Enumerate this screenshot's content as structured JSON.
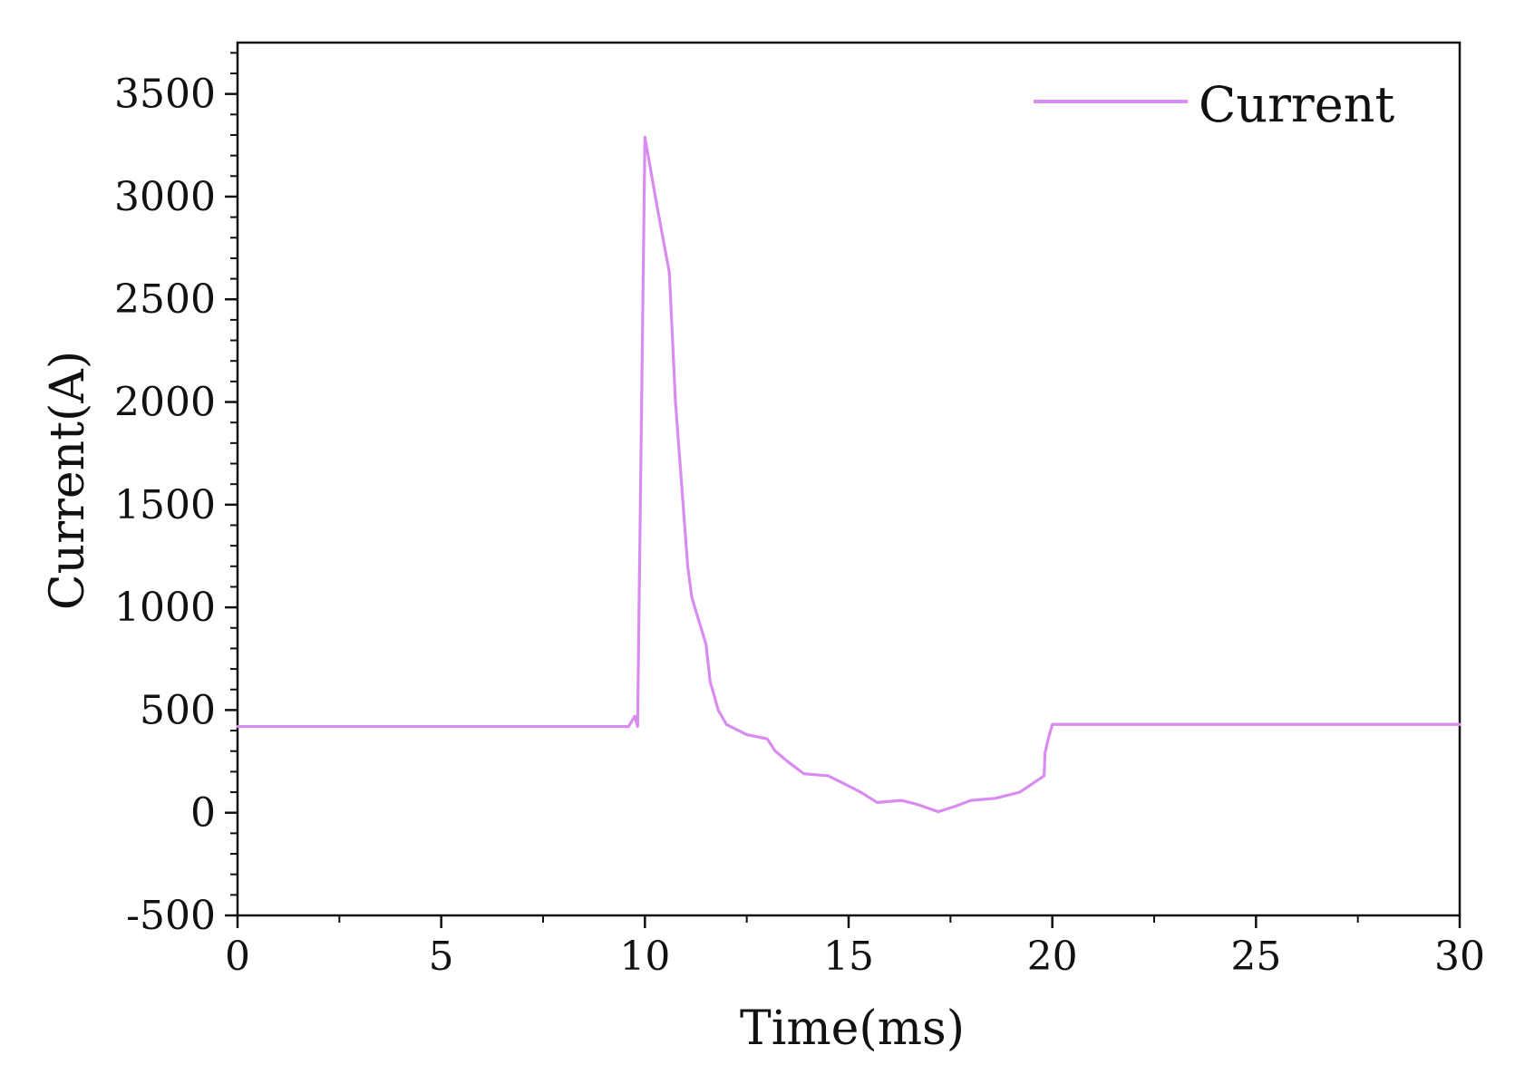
{
  "chart_data": {
    "type": "line",
    "title": "",
    "xlabel": "Time(ms)",
    "ylabel": "Current(A)",
    "xlim": [
      0,
      30
    ],
    "ylim": [
      -500,
      3750
    ],
    "xticks": [
      0,
      5,
      10,
      15,
      20,
      25,
      30
    ],
    "yticks": [
      -500,
      0,
      500,
      1000,
      1500,
      2000,
      2500,
      3000,
      3500
    ],
    "xtick_labels": [
      "0",
      "5",
      "10",
      "15",
      "20",
      "25",
      "30"
    ],
    "ytick_labels": [
      "-500",
      "0",
      "500",
      "1000",
      "1500",
      "2000",
      "2500",
      "3000",
      "3500"
    ],
    "grid": false,
    "legend_position": "top-right",
    "series": [
      {
        "name": "Current",
        "color": "#d98cf0",
        "x": [
          0,
          9.6,
          9.75,
          9.82,
          10.0,
          10.3,
          10.6,
          10.75,
          10.9,
          11.05,
          11.15,
          11.3,
          11.5,
          11.6,
          11.8,
          12.0,
          12.5,
          13.0,
          13.2,
          13.5,
          13.9,
          14.5,
          14.9,
          15.3,
          15.7,
          16.3,
          16.7,
          17.2,
          17.6,
          18.0,
          18.6,
          19.2,
          19.8,
          19.82,
          19.9,
          20.0,
          25,
          30
        ],
        "y": [
          420,
          420,
          470,
          420,
          3290,
          2950,
          2630,
          2000,
          1600,
          1200,
          1050,
          950,
          820,
          640,
          500,
          430,
          380,
          360,
          300,
          250,
          190,
          180,
          140,
          100,
          50,
          60,
          40,
          5,
          30,
          60,
          70,
          100,
          180,
          290,
          360,
          430,
          430,
          430
        ]
      }
    ]
  }
}
